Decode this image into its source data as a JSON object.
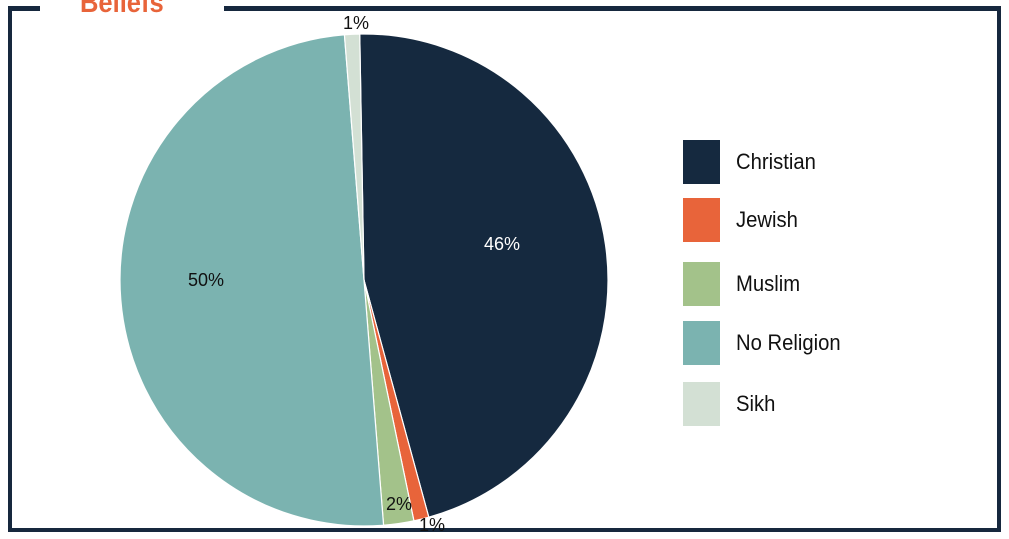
{
  "header": {
    "title": "Beliefs"
  },
  "chart_data": {
    "type": "pie",
    "title": "Beliefs",
    "start_angle_deg": -1,
    "legend_position": "right",
    "slices": [
      {
        "label": "Christian",
        "value": 46,
        "display": "46%",
        "color": "#15293f",
        "label_color": "#ffffff"
      },
      {
        "label": "Jewish",
        "value": 1,
        "display": "1%",
        "color": "#e8643a",
        "label_color": "#111111"
      },
      {
        "label": "Muslim",
        "value": 2,
        "display": "2%",
        "color": "#a3c28a",
        "label_color": "#111111"
      },
      {
        "label": "No Religion",
        "value": 50,
        "display": "50%",
        "color": "#7bb3b0",
        "label_color": "#111111"
      },
      {
        "label": "Sikh",
        "value": 1,
        "display": "1%",
        "color": "#d3e0d4",
        "label_color": "#111111"
      }
    ]
  },
  "legend": {
    "items": [
      {
        "label": "Christian",
        "color": "#15293f"
      },
      {
        "label": "Jewish",
        "color": "#e8643a"
      },
      {
        "label": "Muslim",
        "color": "#a3c28a"
      },
      {
        "label": "No Religion",
        "color": "#7bb3b0"
      },
      {
        "label": "Sikh",
        "color": "#d3e0d4"
      }
    ]
  }
}
